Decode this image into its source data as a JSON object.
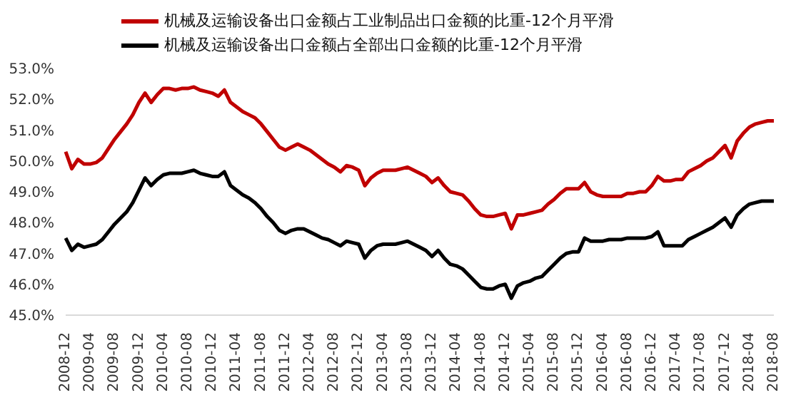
{
  "chart_data": {
    "type": "line",
    "categories": [
      "2008-12",
      null,
      null,
      null,
      "2009-04",
      null,
      null,
      null,
      "2009-08",
      null,
      null,
      null,
      "2009-12",
      null,
      null,
      null,
      "2010-04",
      null,
      null,
      null,
      "2010-08",
      null,
      null,
      null,
      "2010-12",
      null,
      null,
      null,
      "2011-04",
      null,
      null,
      null,
      "2011-08",
      null,
      null,
      null,
      "2011-12",
      null,
      null,
      null,
      "2012-04",
      null,
      null,
      null,
      "2012-08",
      null,
      null,
      null,
      "2012-12",
      null,
      null,
      null,
      "2013-04",
      null,
      null,
      null,
      "2013-08",
      null,
      null,
      null,
      "2013-12",
      null,
      null,
      null,
      "2014-04",
      null,
      null,
      null,
      "2014-08",
      null,
      null,
      null,
      "2014-12",
      null,
      null,
      null,
      "2015-04",
      null,
      null,
      null,
      "2015-08",
      null,
      null,
      null,
      "2015-12",
      null,
      null,
      null,
      "2016-04",
      null,
      null,
      null,
      "2016-08",
      null,
      null,
      null,
      "2016-12",
      null,
      null,
      null,
      "2017-04",
      null,
      null,
      null,
      "2017-08",
      null,
      null,
      null,
      "2017-12",
      null,
      null,
      null,
      "2018-04",
      null,
      null,
      null,
      "2018-08"
    ],
    "series": [
      {
        "name": "机械及运输设备出口金额占工业制品出口金额的比重-12个月平滑",
        "color": "#c00000",
        "values": [
          50.3,
          49.75,
          50.05,
          49.9,
          49.9,
          49.95,
          50.1,
          50.4,
          50.7,
          50.95,
          51.2,
          51.5,
          51.9,
          52.2,
          51.9,
          52.15,
          52.35,
          52.35,
          52.3,
          52.35,
          52.35,
          52.4,
          52.3,
          52.25,
          52.2,
          52.1,
          52.3,
          51.9,
          51.75,
          51.6,
          51.5,
          51.4,
          51.2,
          50.95,
          50.7,
          50.45,
          50.35,
          50.45,
          50.55,
          50.45,
          50.35,
          50.2,
          50.05,
          49.9,
          49.8,
          49.65,
          49.85,
          49.8,
          49.7,
          49.2,
          49.45,
          49.6,
          49.7,
          49.7,
          49.7,
          49.75,
          49.8,
          49.7,
          49.6,
          49.5,
          49.3,
          49.45,
          49.2,
          49.0,
          48.95,
          48.9,
          48.7,
          48.45,
          48.25,
          48.2,
          48.2,
          48.25,
          48.3,
          47.8,
          48.25,
          48.25,
          48.3,
          48.35,
          48.4,
          48.6,
          48.75,
          48.95,
          49.1,
          49.1,
          49.1,
          49.3,
          49.0,
          48.9,
          48.85,
          48.85,
          48.85,
          48.85,
          48.95,
          48.95,
          49.0,
          49.0,
          49.2,
          49.5,
          49.35,
          49.35,
          49.4,
          49.4,
          49.65,
          49.75,
          49.85,
          50.0,
          50.1,
          50.3,
          50.5,
          50.1,
          50.65,
          50.9,
          51.1,
          51.2,
          51.25,
          51.3,
          51.3
        ]
      },
      {
        "name": "机械及运输设备出口金额占全部出口金额的比重-12个月平滑",
        "color": "#000000",
        "values": [
          47.5,
          47.1,
          47.3,
          47.2,
          47.25,
          47.3,
          47.45,
          47.7,
          47.95,
          48.15,
          48.35,
          48.65,
          49.05,
          49.45,
          49.2,
          49.4,
          49.55,
          49.6,
          49.6,
          49.6,
          49.65,
          49.7,
          49.6,
          49.55,
          49.5,
          49.5,
          49.65,
          49.2,
          49.05,
          48.9,
          48.8,
          48.65,
          48.45,
          48.2,
          48.0,
          47.75,
          47.65,
          47.75,
          47.8,
          47.8,
          47.7,
          47.6,
          47.5,
          47.45,
          47.35,
          47.25,
          47.4,
          47.35,
          47.3,
          46.85,
          47.1,
          47.25,
          47.3,
          47.3,
          47.3,
          47.35,
          47.4,
          47.3,
          47.2,
          47.1,
          46.9,
          47.1,
          46.85,
          46.65,
          46.6,
          46.5,
          46.3,
          46.1,
          45.9,
          45.85,
          45.85,
          45.95,
          46.0,
          45.55,
          45.95,
          46.05,
          46.1,
          46.2,
          46.25,
          46.45,
          46.65,
          46.85,
          47.0,
          47.05,
          47.05,
          47.5,
          47.4,
          47.4,
          47.4,
          47.45,
          47.45,
          47.45,
          47.5,
          47.5,
          47.5,
          47.5,
          47.55,
          47.7,
          47.25,
          47.25,
          47.25,
          47.25,
          47.45,
          47.55,
          47.65,
          47.75,
          47.85,
          48.0,
          48.15,
          47.85,
          48.25,
          48.45,
          48.6,
          48.65,
          48.7,
          48.7,
          48.7
        ]
      }
    ],
    "ylim": [
      45,
      53
    ],
    "yticks": [
      {
        "value": 45,
        "label": "45.0%"
      },
      {
        "value": 46,
        "label": "46.0%"
      },
      {
        "value": 47,
        "label": "47.0%"
      },
      {
        "value": 48,
        "label": "48.0%"
      },
      {
        "value": 49,
        "label": "49.0%"
      },
      {
        "value": 50,
        "label": "50.0%"
      },
      {
        "value": 51,
        "label": "51.0%"
      },
      {
        "value": 52,
        "label": "52.0%"
      },
      {
        "value": 53,
        "label": "53.0%"
      }
    ],
    "legend": "top",
    "marker": "none",
    "line_style": "solid"
  }
}
